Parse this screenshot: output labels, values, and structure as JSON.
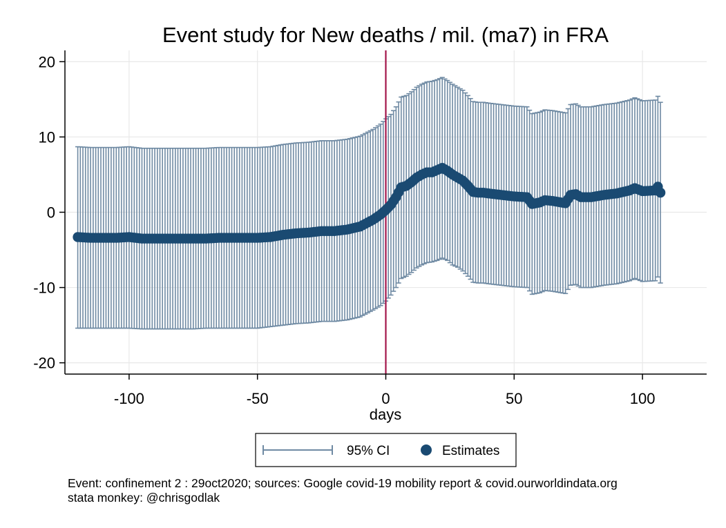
{
  "chart_data": {
    "type": "scatter",
    "title": "Event study for New deaths / mil. (ma7) in FRA",
    "xlabel": "days",
    "ylabel": "",
    "xlim": [
      -125,
      125
    ],
    "ylim": [
      -21.5,
      21.5
    ],
    "xticks": [
      -100,
      -50,
      0,
      50,
      100
    ],
    "xtick_labels": [
      "-100",
      "-50",
      "0",
      "50",
      "100"
    ],
    "yticks": [
      -20,
      -10,
      0,
      10,
      20
    ],
    "ytick_labels": [
      "-20",
      "-10",
      "0",
      "10",
      "20"
    ],
    "grid": true,
    "event_line_x": 0,
    "legend": {
      "position": "bottom",
      "ci_label": "95% CI",
      "estimates_label": "Estimates"
    },
    "colors": {
      "estimates": "#1a4a72",
      "ci": "#6f8aa3",
      "event_line": "#a3154a",
      "grid": "#e8e8e8"
    },
    "series": [
      {
        "name": "Estimates",
        "x": [
          -120,
          -115,
          -110,
          -105,
          -100,
          -95,
          -90,
          -85,
          -80,
          -75,
          -70,
          -65,
          -60,
          -55,
          -50,
          -45,
          -40,
          -35,
          -30,
          -25,
          -20,
          -15,
          -10,
          -5,
          -2,
          0,
          2,
          4,
          6,
          8,
          10,
          12,
          14,
          16,
          18,
          20,
          22,
          24,
          26,
          28,
          30,
          32,
          34,
          36,
          38,
          40,
          45,
          50,
          55,
          57,
          60,
          62,
          65,
          70,
          72,
          74,
          76,
          80,
          85,
          90,
          95,
          97,
          100,
          105,
          106,
          107
        ],
        "y": [
          -3.3,
          -3.4,
          -3.4,
          -3.4,
          -3.3,
          -3.5,
          -3.5,
          -3.5,
          -3.5,
          -3.5,
          -3.5,
          -3.4,
          -3.4,
          -3.4,
          -3.4,
          -3.3,
          -3.0,
          -2.8,
          -2.7,
          -2.5,
          -2.5,
          -2.3,
          -1.9,
          -1.0,
          -0.3,
          0.3,
          1.0,
          2.0,
          3.3,
          3.5,
          4.0,
          4.6,
          5.0,
          5.3,
          5.3,
          5.6,
          5.9,
          5.5,
          5.0,
          4.6,
          4.2,
          3.5,
          2.7,
          2.6,
          2.6,
          2.5,
          2.3,
          2.1,
          2.0,
          1.1,
          1.3,
          1.6,
          1.5,
          1.2,
          2.3,
          2.4,
          2.0,
          2.0,
          2.3,
          2.5,
          2.9,
          3.2,
          2.8,
          2.9,
          3.4,
          2.6
        ]
      },
      {
        "name": "95% CI",
        "x": [
          -120,
          -115,
          -110,
          -105,
          -100,
          -95,
          -90,
          -85,
          -80,
          -75,
          -70,
          -65,
          -60,
          -55,
          -50,
          -45,
          -40,
          -35,
          -30,
          -25,
          -20,
          -15,
          -10,
          -5,
          -2,
          0,
          2,
          4,
          6,
          8,
          10,
          12,
          14,
          16,
          18,
          20,
          22,
          24,
          26,
          28,
          30,
          32,
          34,
          36,
          38,
          40,
          45,
          50,
          55,
          57,
          60,
          62,
          65,
          70,
          72,
          74,
          76,
          80,
          85,
          90,
          95,
          97,
          100,
          105,
          106,
          107
        ],
        "lower": [
          -15.4,
          -15.4,
          -15.4,
          -15.4,
          -15.4,
          -15.5,
          -15.5,
          -15.5,
          -15.5,
          -15.5,
          -15.4,
          -15.4,
          -15.4,
          -15.4,
          -15.4,
          -15.2,
          -15.0,
          -14.8,
          -14.7,
          -14.5,
          -14.5,
          -14.3,
          -13.9,
          -13.0,
          -12.4,
          -11.8,
          -11.0,
          -10.0,
          -8.8,
          -8.5,
          -8.0,
          -7.4,
          -7.0,
          -6.7,
          -6.6,
          -6.4,
          -6.1,
          -6.4,
          -7.0,
          -7.3,
          -7.8,
          -8.5,
          -9.3,
          -9.4,
          -9.4,
          -9.5,
          -9.7,
          -9.9,
          -10.0,
          -10.9,
          -10.7,
          -10.4,
          -10.5,
          -10.8,
          -9.7,
          -9.6,
          -10.0,
          -10.0,
          -9.7,
          -9.5,
          -9.1,
          -8.8,
          -9.2,
          -9.1,
          -8.6,
          -9.4
        ],
        "upper": [
          8.7,
          8.6,
          8.6,
          8.6,
          8.7,
          8.5,
          8.5,
          8.5,
          8.5,
          8.5,
          8.5,
          8.6,
          8.6,
          8.6,
          8.6,
          8.7,
          9.0,
          9.2,
          9.3,
          9.5,
          9.5,
          9.7,
          10.1,
          11.0,
          11.7,
          12.4,
          13.0,
          14.0,
          15.3,
          15.5,
          16.0,
          16.6,
          17.0,
          17.3,
          17.4,
          17.6,
          17.9,
          17.5,
          17.0,
          16.6,
          16.2,
          15.5,
          14.7,
          14.6,
          14.6,
          14.5,
          14.3,
          14.1,
          14.0,
          13.1,
          13.3,
          13.6,
          13.5,
          13.2,
          14.3,
          14.4,
          14.0,
          14.0,
          14.3,
          14.5,
          14.9,
          15.2,
          14.8,
          14.9,
          15.4,
          14.6
        ]
      }
    ]
  },
  "notes": {
    "line1": "Event: confinement 2 : 29oct2020; sources: Google covid-19 mobility report & covid.ourworldindata.org",
    "line2": "stata monkey: @chrisgodlak"
  }
}
